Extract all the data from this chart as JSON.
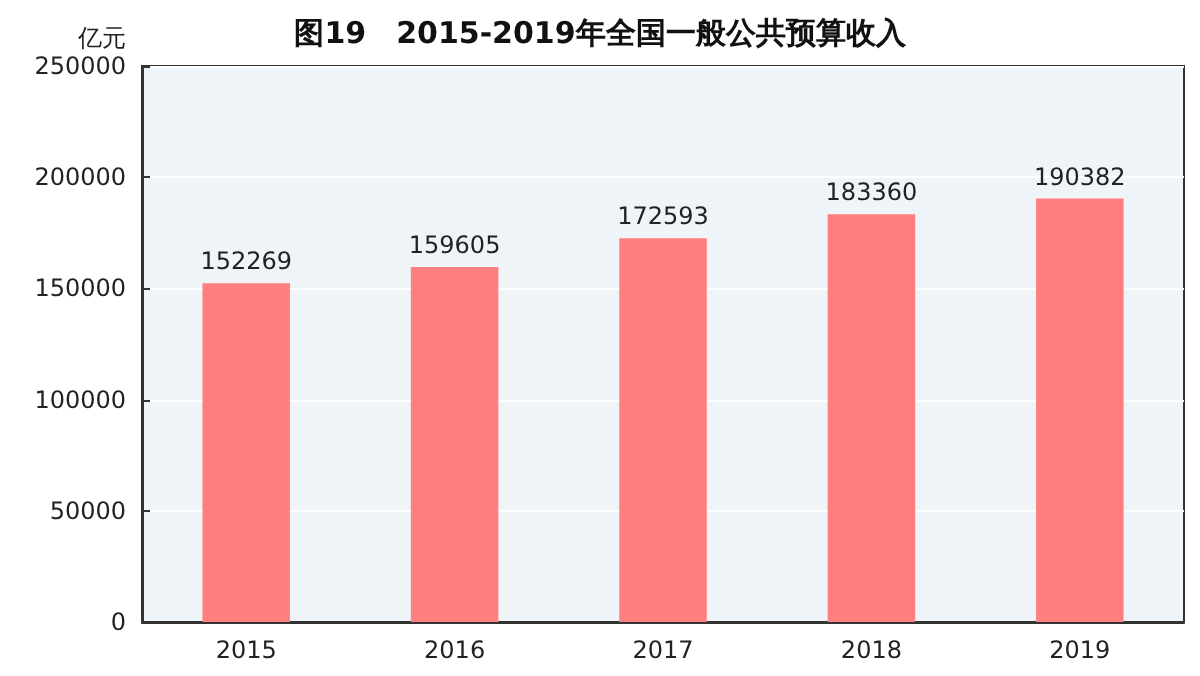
{
  "chart_data": {
    "type": "bar",
    "title": "图19　2015-2019年全国一般公共预算收入",
    "ylabel": "亿元",
    "categories": [
      "2015",
      "2016",
      "2017",
      "2018",
      "2019"
    ],
    "values": [
      152269,
      159605,
      172593,
      183360,
      190382
    ],
    "color": "#ff7f7f",
    "ylim": [
      0,
      250000
    ],
    "yticks": [
      0,
      50000,
      100000,
      150000,
      200000,
      250000
    ],
    "grid": "y",
    "data_labels": true
  }
}
